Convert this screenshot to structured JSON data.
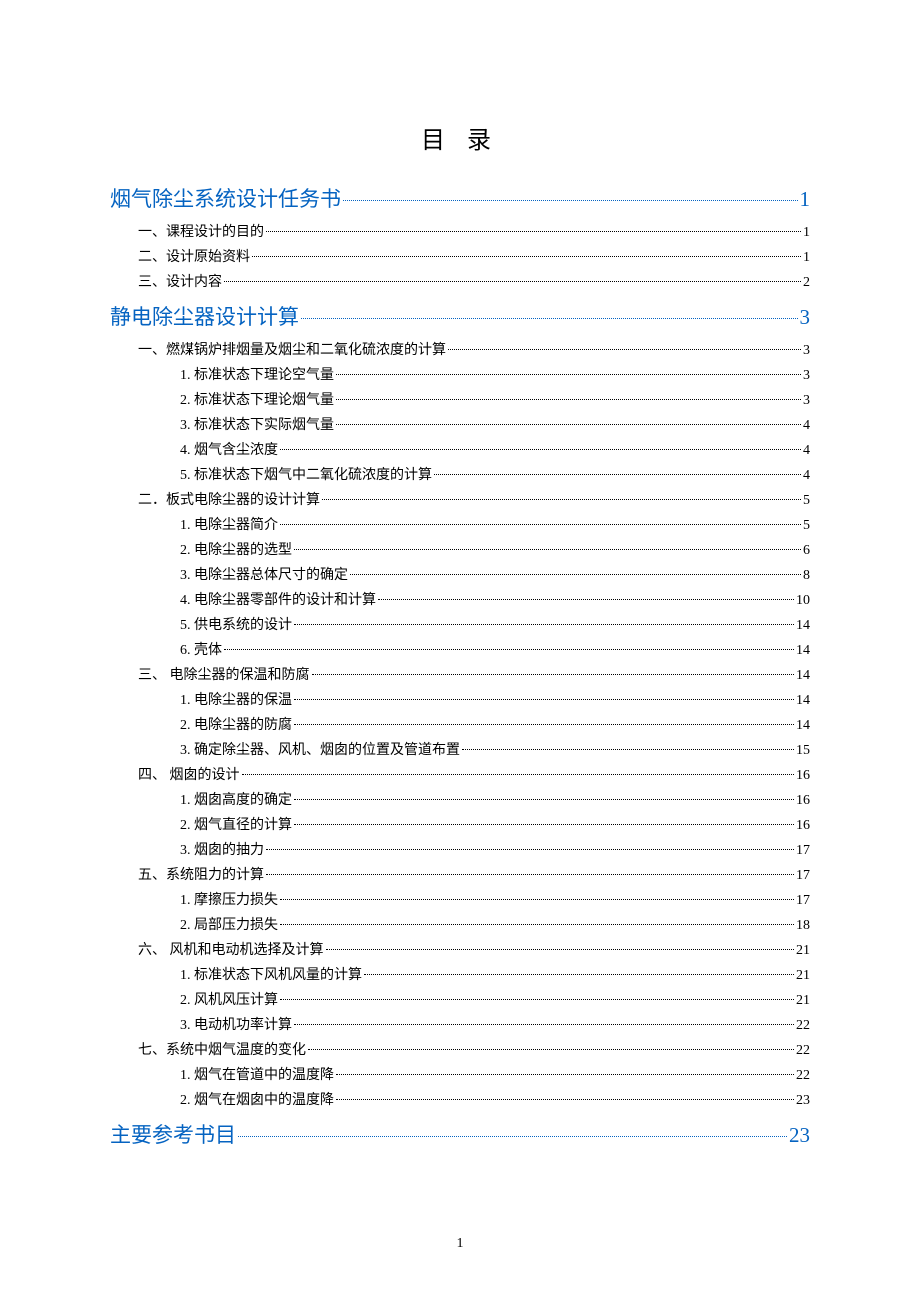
{
  "title": "目 录",
  "pageNumber": "1",
  "colors": {
    "background": "#ffffff",
    "text": "#000000",
    "link": "#0563c1"
  },
  "fonts": {
    "titleSize": 24,
    "level1Size": 21,
    "level2Size": 14,
    "level3Size": 14
  },
  "entries": [
    {
      "level": 1,
      "label": "烟气除尘系统设计任务书",
      "page": "1"
    },
    {
      "level": 2,
      "label": "一、课程设计的目的",
      "page": "1"
    },
    {
      "level": 2,
      "label": "二、设计原始资料",
      "page": "1"
    },
    {
      "level": 2,
      "label": "三、设计内容",
      "page": "2"
    },
    {
      "level": 1,
      "label": "静电除尘器设计计算",
      "page": "3"
    },
    {
      "level": 2,
      "label": "一、燃煤锅炉排烟量及烟尘和二氧化硫浓度的计算",
      "page": "3"
    },
    {
      "level": 3,
      "label": "1.  标准状态下理论空气量",
      "page": "3"
    },
    {
      "level": 3,
      "label": "2.  标准状态下理论烟气量",
      "page": "3"
    },
    {
      "level": 3,
      "label": "3.  标准状态下实际烟气量",
      "page": "4"
    },
    {
      "level": 3,
      "label": "4.  烟气含尘浓度",
      "page": "4"
    },
    {
      "level": 3,
      "label": "5.  标准状态下烟气中二氧化硫浓度的计算",
      "page": "4"
    },
    {
      "level": 2,
      "label": "二．板式电除尘器的设计计算",
      "page": "5"
    },
    {
      "level": 3,
      "label": "1.  电除尘器简介",
      "page": "5"
    },
    {
      "level": 3,
      "label": "2.  电除尘器的选型",
      "page": "6"
    },
    {
      "level": 3,
      "label": "3.  电除尘器总体尺寸的确定",
      "page": "8"
    },
    {
      "level": 3,
      "label": "4.  电除尘器零部件的设计和计算",
      "page": "10"
    },
    {
      "level": 3,
      "label": "5.  供电系统的设计",
      "page": "14"
    },
    {
      "level": 3,
      "label": "6.  壳体",
      "page": "14"
    },
    {
      "level": 2,
      "label": "三、  电除尘器的保温和防腐",
      "page": "14"
    },
    {
      "level": 3,
      "label": "1.  电除尘器的保温",
      "page": "14"
    },
    {
      "level": 3,
      "label": "2.  电除尘器的防腐",
      "page": "14"
    },
    {
      "level": 3,
      "label": "3.  确定除尘器、风机、烟囱的位置及管道布置",
      "page": "15"
    },
    {
      "level": 2,
      "label": "四、  烟囱的设计",
      "page": "16"
    },
    {
      "level": 3,
      "label": "1.  烟囱高度的确定",
      "page": "16"
    },
    {
      "level": 3,
      "label": "2.  烟气直径的计算",
      "page": "16"
    },
    {
      "level": 3,
      "label": "3.  烟囱的抽力",
      "page": "17"
    },
    {
      "level": 2,
      "label": "五、系统阻力的计算",
      "page": "17"
    },
    {
      "level": 3,
      "label": "1.  摩擦压力损失",
      "page": "17"
    },
    {
      "level": 3,
      "label": "2.  局部压力损失",
      "page": "18"
    },
    {
      "level": 2,
      "label": "六、  风机和电动机选择及计算",
      "page": "21"
    },
    {
      "level": 3,
      "label": "1.  标准状态下风机风量的计算",
      "page": "21"
    },
    {
      "level": 3,
      "label": "2.  风机风压计算",
      "page": "21"
    },
    {
      "level": 3,
      "label": "3.  电动机功率计算",
      "page": "22"
    },
    {
      "level": 2,
      "label": "七、系统中烟气温度的变化",
      "page": "22"
    },
    {
      "level": 3,
      "label": "1.  烟气在管道中的温度降",
      "page": "22"
    },
    {
      "level": 3,
      "label": "2.  烟气在烟囱中的温度降",
      "page": "23"
    },
    {
      "level": 1,
      "label": "主要参考书目",
      "page": "23"
    }
  ]
}
